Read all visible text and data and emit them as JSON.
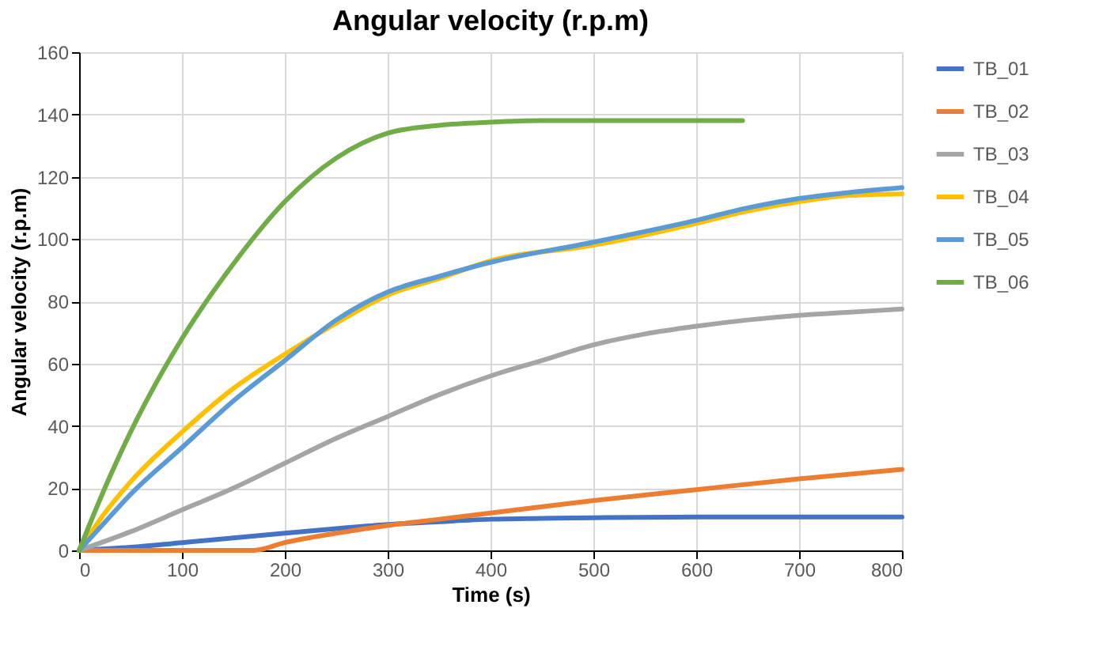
{
  "chart_data": {
    "type": "line",
    "title": "Angular velocity (r.p.m)",
    "xlabel": "Time (s)",
    "ylabel": "Angular velocity (r.p.m)",
    "xlim": [
      0,
      800
    ],
    "xticks": [
      0,
      100,
      200,
      300,
      400,
      500,
      600,
      700,
      800
    ],
    "ylim": [
      0,
      160
    ],
    "yticks": [
      0,
      20,
      40,
      60,
      80,
      100,
      120,
      140,
      160
    ],
    "grid": true,
    "legend": "right",
    "marker": "none",
    "line_style": "solid",
    "series": [
      {
        "name": "TB_01",
        "color": "#4472c4",
        "x": [
          0,
          50,
          100,
          150,
          200,
          250,
          300,
          350,
          400,
          450,
          500,
          600,
          700,
          800
        ],
        "values": [
          0,
          1,
          2.5,
          4,
          5.5,
          7,
          8.3,
          9.2,
          10,
          10.3,
          10.5,
          10.7,
          10.7,
          10.7
        ]
      },
      {
        "name": "TB_02",
        "color": "#ed7d31",
        "x": [
          0,
          100,
          170,
          200,
          250,
          300,
          350,
          400,
          500,
          600,
          700,
          800
        ],
        "values": [
          0,
          0,
          0,
          2.5,
          5.5,
          8,
          10,
          12,
          16,
          19.5,
          23,
          26
        ]
      },
      {
        "name": "TB_03",
        "color": "#a5a5a5",
        "x": [
          0,
          50,
          100,
          150,
          200,
          250,
          300,
          350,
          400,
          450,
          500,
          550,
          600,
          650,
          700,
          750,
          800
        ],
        "values": [
          0,
          6,
          13,
          20,
          28,
          36,
          43,
          50,
          56,
          61,
          66,
          69.5,
          72,
          74,
          75.5,
          76.5,
          77.5
        ]
      },
      {
        "name": "TB_04",
        "color": "#ffc000",
        "x": [
          0,
          25,
          50,
          100,
          150,
          200,
          250,
          300,
          350,
          400,
          500,
          600,
          650,
          700,
          750,
          800
        ],
        "values": [
          0,
          12,
          22,
          38,
          52,
          63,
          73,
          82,
          87.3,
          93,
          98,
          105,
          109,
          112,
          114,
          114.5
        ]
      },
      {
        "name": "TB_05",
        "color": "#5b9bd5",
        "x": [
          0,
          25,
          50,
          100,
          150,
          200,
          250,
          300,
          350,
          400,
          500,
          600,
          650,
          700,
          750,
          800
        ],
        "values": [
          0,
          9,
          18,
          33,
          48,
          61,
          74,
          83,
          88,
          92.5,
          99,
          106,
          110,
          113,
          115,
          116.5
        ]
      },
      {
        "name": "TB_06",
        "color": "#70ad47",
        "x": [
          0,
          25,
          50,
          100,
          150,
          200,
          250,
          300,
          350,
          400,
          450,
          500,
          550,
          600,
          645
        ],
        "values": [
          0,
          20,
          38,
          68,
          92,
          112,
          126,
          134,
          136.5,
          137.5,
          138,
          138,
          138,
          138,
          138
        ]
      }
    ]
  }
}
